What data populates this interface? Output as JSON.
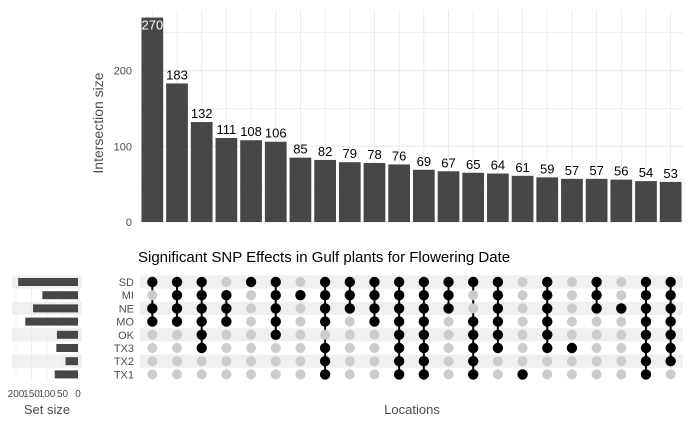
{
  "chart_data": {
    "type": "upset",
    "title": "Significant SNP Effects in Gulf plants for Flowering Date",
    "top_ylabel": "Intersection size",
    "xlabel": "Locations",
    "set_size_label": "Set size",
    "ylim": [
      0,
      280
    ],
    "y_ticks": [
      0,
      100,
      200
    ],
    "set_size_ticks": [
      "200",
      "150",
      "100",
      "50",
      "0"
    ],
    "grid": true,
    "colors": {
      "bar": "#474747",
      "dot_on": "#000000",
      "dot_off": "#cccccc",
      "stripe": "#f0f0f0",
      "grid": "#e8e8e8"
    },
    "sets": [
      "SD",
      "MI",
      "NE",
      "MO",
      "OK",
      "TX3",
      "TX2",
      "TX1"
    ],
    "set_sizes": [
      193,
      115,
      145,
      170,
      68,
      70,
      40,
      75
    ],
    "intersections": [
      {
        "size": 270,
        "value_label": "270",
        "members": [
          "SD",
          "NE",
          "MO"
        ]
      },
      {
        "size": 183,
        "value_label": "183",
        "members": [
          "SD",
          "MI",
          "NE",
          "MO"
        ]
      },
      {
        "size": 132,
        "value_label": "132",
        "members": [
          "SD",
          "MI",
          "NE",
          "MO",
          "OK",
          "TX3"
        ]
      },
      {
        "size": 111,
        "value_label": "111",
        "members": [
          "MI",
          "NE",
          "MO"
        ]
      },
      {
        "size": 108,
        "value_label": "108",
        "members": [
          "SD"
        ]
      },
      {
        "size": 106,
        "value_label": "106",
        "members": [
          "SD",
          "MI",
          "NE",
          "MO",
          "OK"
        ]
      },
      {
        "size": 85,
        "value_label": "85",
        "members": [
          "MI"
        ]
      },
      {
        "size": 82,
        "value_label": "82",
        "members": [
          "SD",
          "MI",
          "NE",
          "MO",
          "TX3",
          "TX2",
          "TX1"
        ]
      },
      {
        "size": 79,
        "value_label": "79",
        "members": [
          "SD",
          "MI",
          "NE"
        ]
      },
      {
        "size": 78,
        "value_label": "78",
        "members": [
          "SD",
          "MI",
          "NE",
          "MO"
        ]
      },
      {
        "size": 76,
        "value_label": "76",
        "members": [
          "SD",
          "MI",
          "NE",
          "MO",
          "OK",
          "TX3",
          "TX2",
          "TX1"
        ]
      },
      {
        "size": 69,
        "value_label": "69",
        "members": [
          "SD",
          "MI",
          "NE",
          "MO",
          "OK",
          "TX3",
          "TX2",
          "TX1"
        ]
      },
      {
        "size": 67,
        "value_label": "67",
        "members": [
          "SD",
          "MI",
          "NE"
        ]
      },
      {
        "size": 65,
        "value_label": "65",
        "members": [
          "SD",
          "MO",
          "OK",
          "TX3",
          "TX2",
          "TX1"
        ]
      },
      {
        "size": 64,
        "value_label": "64",
        "members": [
          "SD",
          "MI",
          "NE",
          "MO",
          "OK",
          "TX3"
        ]
      },
      {
        "size": 61,
        "value_label": "61",
        "members": [
          "TX1"
        ]
      },
      {
        "size": 59,
        "value_label": "59",
        "members": [
          "SD",
          "MI",
          "NE",
          "MO",
          "OK",
          "TX3"
        ]
      },
      {
        "size": 57,
        "value_label": "57",
        "members": [
          "TX3"
        ]
      },
      {
        "size": 57,
        "value_label": "57",
        "members": [
          "SD",
          "MI",
          "NE"
        ]
      },
      {
        "size": 56,
        "value_label": "56",
        "members": [
          "NE"
        ]
      },
      {
        "size": 54,
        "value_label": "54",
        "members": [
          "SD",
          "MI",
          "NE",
          "MO",
          "OK",
          "TX3",
          "TX2",
          "TX1"
        ]
      },
      {
        "size": 53,
        "value_label": "53",
        "members": [
          "SD",
          "MI",
          "NE",
          "MO",
          "OK",
          "TX3",
          "TX2"
        ]
      }
    ]
  }
}
